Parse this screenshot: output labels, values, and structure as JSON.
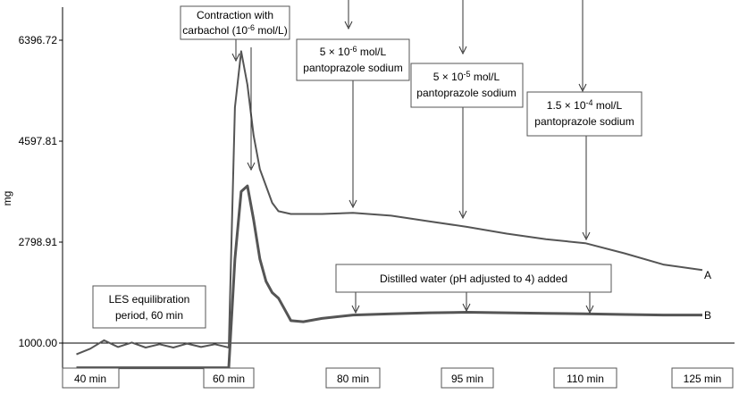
{
  "chart_data": {
    "type": "line",
    "ylabel": "mg",
    "y_ticks": [
      "1000.00",
      "2798.91",
      "4597.81",
      "6396.72"
    ],
    "ylim": [
      1000.0,
      7000.0
    ],
    "x_ticks": [
      "40 min",
      "60 min",
      "80 min",
      "95 min",
      "110 min",
      "125 min"
    ],
    "series": [
      {
        "name": "A",
        "points": [
          [
            38,
            800
          ],
          [
            40,
            900
          ],
          [
            42,
            1050
          ],
          [
            44,
            930
          ],
          [
            46,
            1010
          ],
          [
            48,
            920
          ],
          [
            50,
            980
          ],
          [
            52,
            920
          ],
          [
            54,
            990
          ],
          [
            56,
            930
          ],
          [
            58,
            980
          ],
          [
            60,
            920
          ],
          [
            61,
            5200
          ],
          [
            62,
            6200
          ],
          [
            63,
            5600
          ],
          [
            64,
            4700
          ],
          [
            65,
            4100
          ],
          [
            66,
            3800
          ],
          [
            67,
            3500
          ],
          [
            68,
            3350
          ],
          [
            70,
            3300
          ],
          [
            75,
            3300
          ],
          [
            80,
            3320
          ],
          [
            85,
            3270
          ],
          [
            90,
            3170
          ],
          [
            95,
            3070
          ],
          [
            100,
            2950
          ],
          [
            105,
            2850
          ],
          [
            110,
            2780
          ],
          [
            115,
            2600
          ],
          [
            120,
            2400
          ],
          [
            125,
            2300
          ]
        ]
      },
      {
        "name": "B",
        "points": [
          [
            38,
            560
          ],
          [
            45,
            560
          ],
          [
            50,
            560
          ],
          [
            55,
            560
          ],
          [
            60,
            560
          ],
          [
            61,
            2500
          ],
          [
            62,
            3700
          ],
          [
            63,
            3800
          ],
          [
            64,
            3200
          ],
          [
            65,
            2500
          ],
          [
            66,
            2100
          ],
          [
            67,
            1900
          ],
          [
            68,
            1800
          ],
          [
            69,
            1600
          ],
          [
            70,
            1400
          ],
          [
            72,
            1380
          ],
          [
            75,
            1440
          ],
          [
            80,
            1500
          ],
          [
            85,
            1520
          ],
          [
            90,
            1540
          ],
          [
            95,
            1550
          ],
          [
            100,
            1540
          ],
          [
            105,
            1530
          ],
          [
            110,
            1520
          ],
          [
            115,
            1510
          ],
          [
            120,
            1500
          ],
          [
            125,
            1500
          ]
        ]
      }
    ],
    "annotations": [
      {
        "id": "contraction",
        "lines": [
          "Contraction with",
          "carbachol (10^-6 mol/L)"
        ]
      },
      {
        "id": "panto1",
        "lines": [
          "5 × 10^-6 mol/L",
          "pantoprazole sodium"
        ]
      },
      {
        "id": "panto2",
        "lines": [
          "5 × 10^-5 mol/L",
          "pantoprazole sodium"
        ]
      },
      {
        "id": "panto3",
        "lines": [
          "1.5 × 10^-4 mol/L",
          "pantoprazole sodium"
        ]
      },
      {
        "id": "water",
        "lines": [
          "Distilled water (pH adjusted to 4) added"
        ]
      },
      {
        "id": "les",
        "lines": [
          "LES equilibration",
          "period, 60 min"
        ]
      }
    ],
    "grid": false
  }
}
